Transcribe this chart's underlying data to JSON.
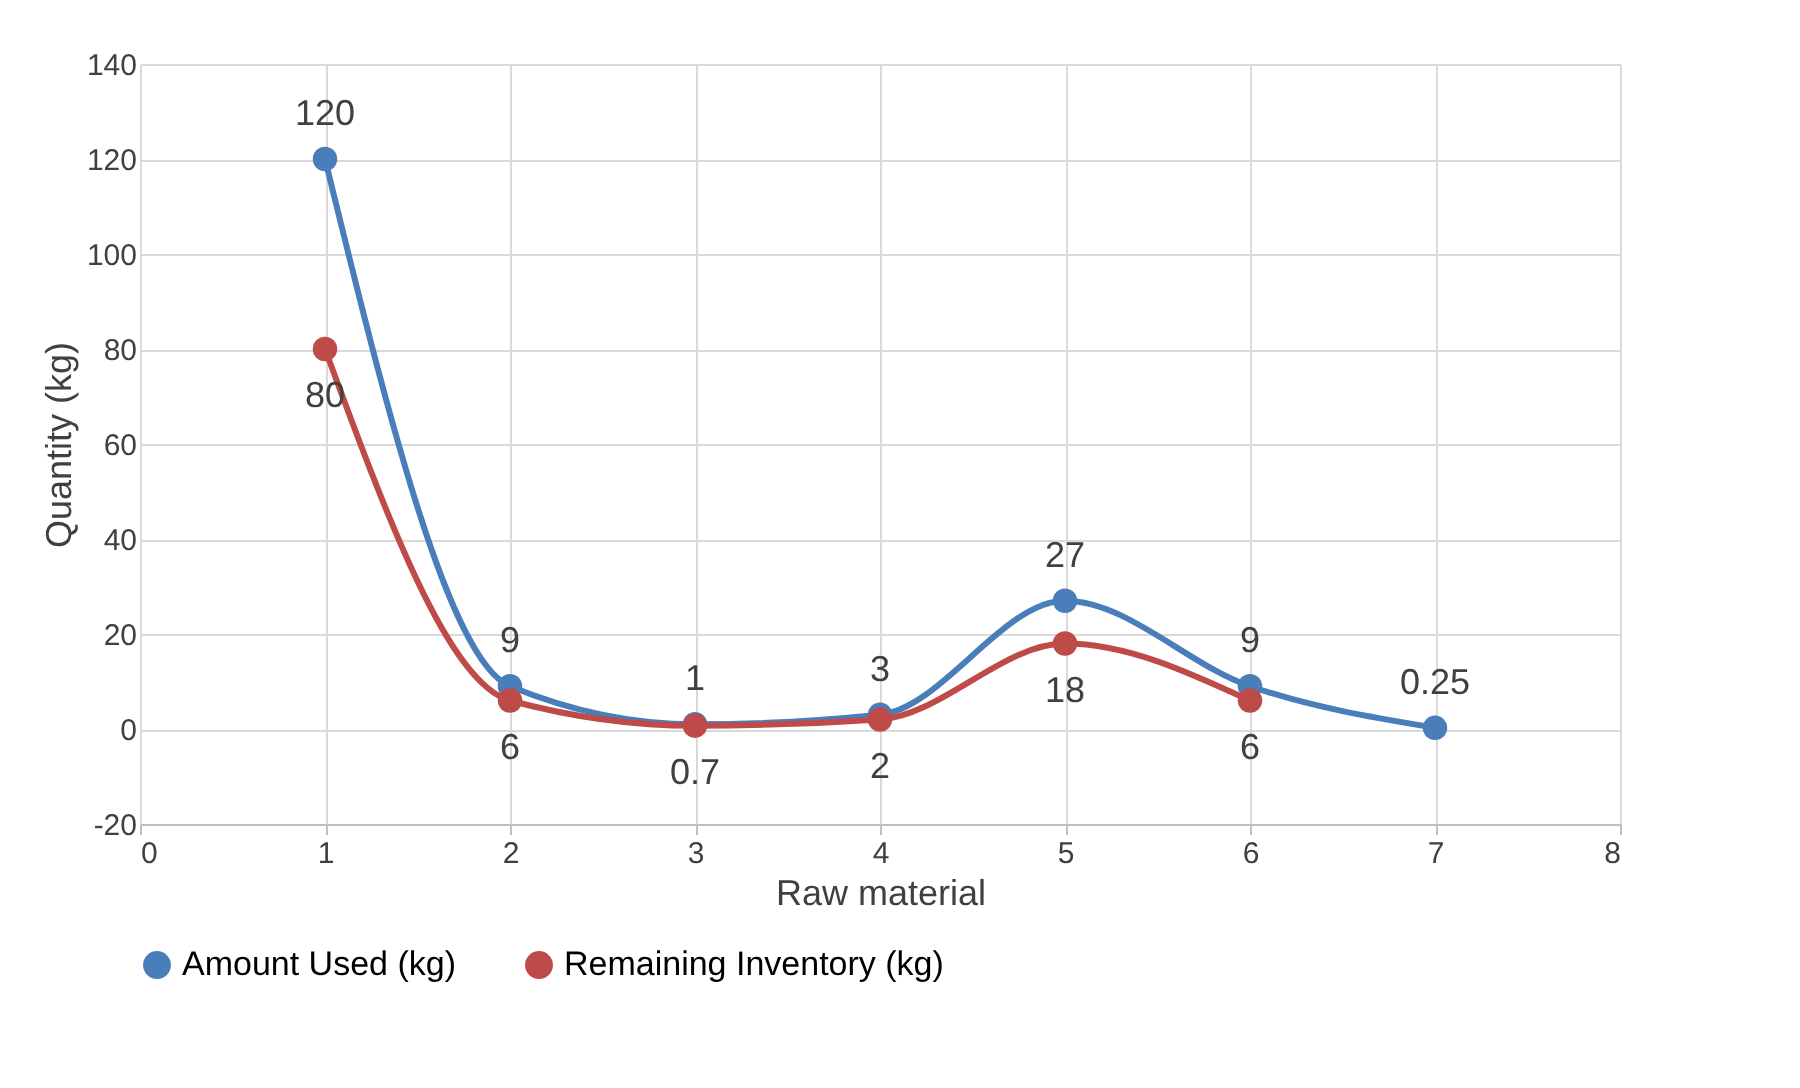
{
  "chart_data": {
    "type": "line",
    "xlabel": "Raw material",
    "ylabel": "Quantity (kg)",
    "x": [
      1,
      2,
      3,
      4,
      5,
      6,
      7
    ],
    "series": [
      {
        "name": "Amount Used (kg)",
        "color": "#4a7ebb",
        "values": [
          120,
          9,
          1,
          3,
          27,
          9,
          0.25
        ],
        "value_labels": [
          "120",
          "9",
          "1",
          "3",
          "27",
          "9",
          "0.25"
        ]
      },
      {
        "name": "Remaining Inventory (kg)",
        "color": "#be4b48",
        "values": [
          80,
          6,
          0.7,
          2,
          18,
          6,
          null
        ],
        "value_labels": [
          "80",
          "6",
          "0.7",
          "2",
          "18",
          "6",
          null
        ]
      }
    ],
    "xlim": [
      0,
      8
    ],
    "xticks": [
      0,
      1,
      2,
      3,
      4,
      5,
      6,
      7,
      8
    ],
    "ylim": [
      -20,
      140
    ],
    "yticks": [
      -20,
      0,
      20,
      40,
      60,
      80,
      100,
      120,
      140
    ],
    "grid": true,
    "legend": "bottom",
    "marker": "circle",
    "line_style": "solid"
  }
}
